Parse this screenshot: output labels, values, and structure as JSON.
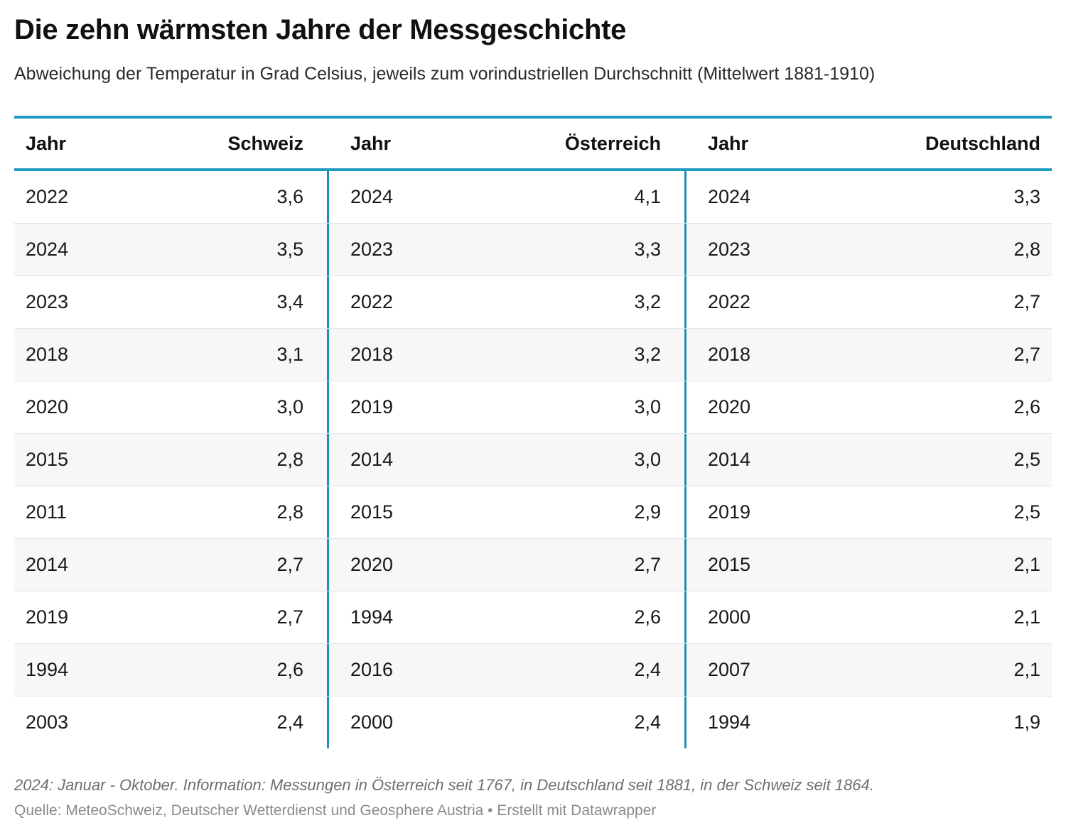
{
  "title": "Die zehn wärmsten Jahre der Messgeschichte",
  "subtitle": "Abweichung der Temperatur in Grad Celsius, jeweils zum vorindustriellen Durchschnitt (Mittelwert 1881-1910)",
  "footnote": "2024: Januar - Oktober. Information: Messungen in Österreich seit 1767, in Deutschland seit 1881, in der Schweiz seit 1864.",
  "source": "Quelle: MeteoSchweiz, Deutscher Wetterdienst und Geosphere Austria • Erstellt mit Datawrapper",
  "colors": {
    "accent": "#1f9ac0",
    "row_shade": "#f7f7f7"
  },
  "chart_data": {
    "type": "table",
    "columns": [
      "Jahr",
      "Schweiz",
      "Jahr",
      "Österreich",
      "Jahr",
      "Deutschland"
    ],
    "rows": [
      [
        "2022",
        "3,6",
        "2024",
        "4,1",
        "2024",
        "3,3"
      ],
      [
        "2024",
        "3,5",
        "2023",
        "3,3",
        "2023",
        "2,8"
      ],
      [
        "2023",
        "3,4",
        "2022",
        "3,2",
        "2022",
        "2,7"
      ],
      [
        "2018",
        "3,1",
        "2018",
        "3,2",
        "2018",
        "2,7"
      ],
      [
        "2020",
        "3,0",
        "2019",
        "3,0",
        "2020",
        "2,6"
      ],
      [
        "2015",
        "2,8",
        "2014",
        "3,0",
        "2014",
        "2,5"
      ],
      [
        "2011",
        "2,8",
        "2015",
        "2,9",
        "2019",
        "2,5"
      ],
      [
        "2014",
        "2,7",
        "2020",
        "2,7",
        "2015",
        "2,1"
      ],
      [
        "2019",
        "2,7",
        "1994",
        "2,6",
        "2000",
        "2,1"
      ],
      [
        "1994",
        "2,6",
        "2016",
        "2,4",
        "2007",
        "2,1"
      ],
      [
        "2003",
        "2,4",
        "2000",
        "2,4",
        "1994",
        "1,9"
      ]
    ]
  }
}
